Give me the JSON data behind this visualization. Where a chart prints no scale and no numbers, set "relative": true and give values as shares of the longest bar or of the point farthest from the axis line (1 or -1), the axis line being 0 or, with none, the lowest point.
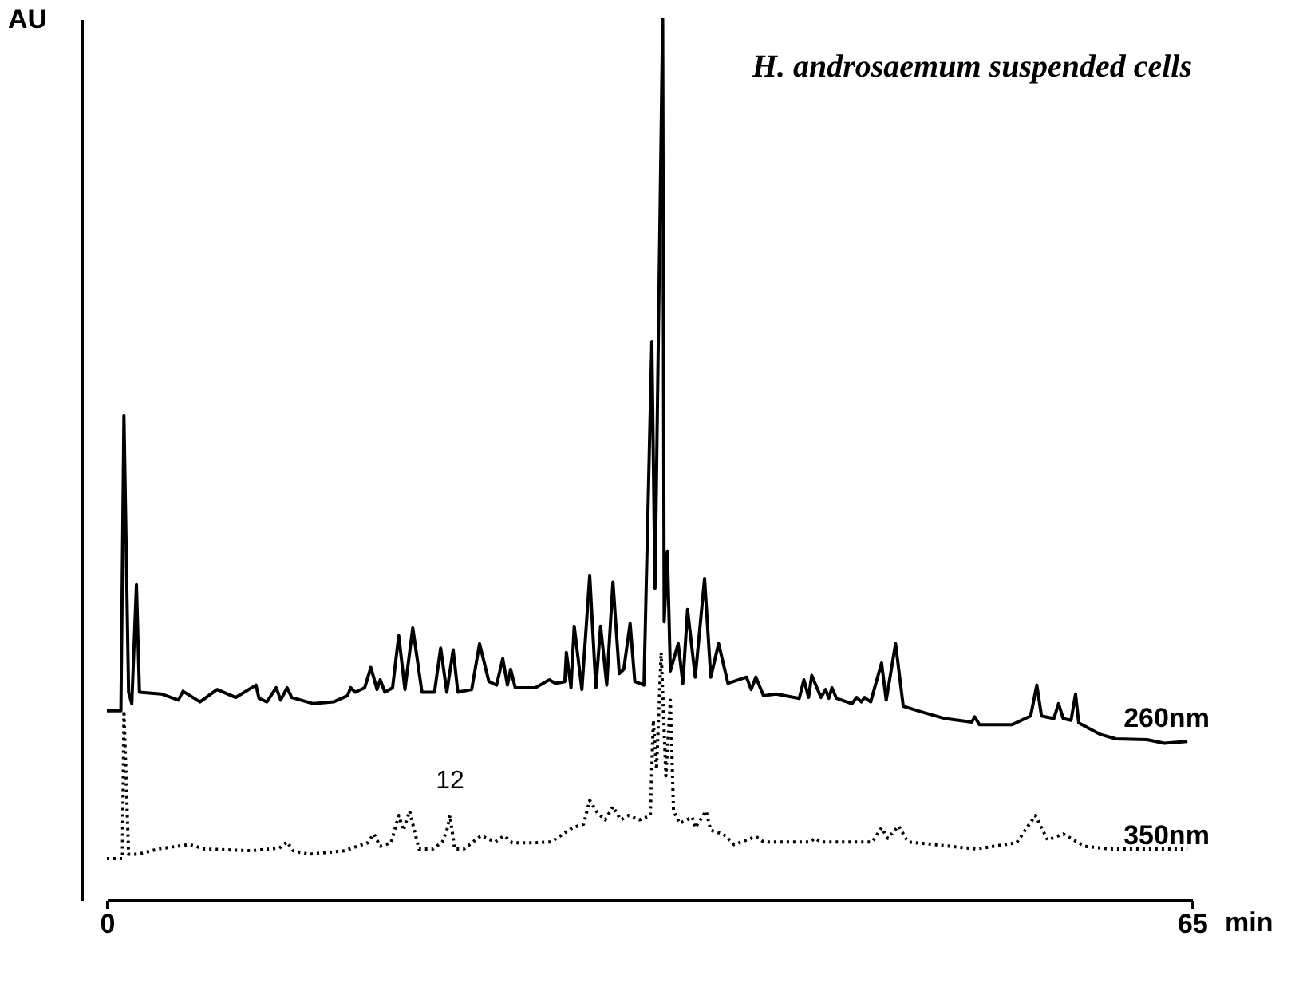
{
  "chart_data": {
    "type": "line",
    "title": "H. androsaemum suspended cells",
    "xlabel": "min",
    "ylabel": "AU",
    "relative": true,
    "xlim": [
      0,
      65
    ],
    "xticks": [
      0,
      65
    ],
    "tick_labels": "x",
    "grid": false,
    "legend": false,
    "marker": "none",
    "series": [
      {
        "name": "260nm",
        "color": "#000000",
        "line_style": "solid",
        "x": [
          0,
          0.84,
          1.02,
          1.3,
          1.49,
          1.77,
          1.95,
          3.25,
          4.28,
          4.56,
          5.58,
          6.6,
          7.72,
          8.93,
          9.11,
          9.58,
          10.14,
          10.41,
          10.79,
          11.07,
          12.37,
          13.58,
          14.41,
          14.6,
          14.88,
          15.44,
          15.81,
          16.18,
          16.37,
          16.65,
          17.11,
          17.48,
          17.85,
          18.32,
          18.87,
          19.62,
          19.99,
          20.36,
          20.74,
          21.02,
          21.85,
          22.32,
          22.88,
          23.34,
          23.71,
          23.99,
          24.18,
          24.46,
          25.66,
          26.5,
          26.87,
          27.43,
          27.52,
          27.8,
          27.99,
          28.45,
          28.92,
          29.29,
          29.57,
          29.94,
          30.31,
          30.69,
          30.96,
          31.34,
          31.62,
          32.17,
          32.64,
          32.83,
          33.29,
          33.38,
          33.57,
          33.75,
          34.22,
          34.5,
          34.78,
          35.24,
          35.8,
          36.17,
          36.64,
          37.2,
          38.31,
          38.59,
          38.87,
          39.33,
          40.08,
          41.47,
          41.75,
          42.03,
          42.22,
          42.77,
          43.05,
          43.24,
          43.43,
          43.7,
          44.63,
          44.91,
          45.19,
          45.38,
          45.75,
          46.4,
          46.68,
          47.24,
          47.7,
          48.91,
          50.21,
          51.8,
          51.98,
          52.26,
          54.21,
          55.33,
          55.7,
          55.98,
          56.72,
          57.0,
          57.28,
          57.75,
          58.02,
          58.21,
          59.51,
          60.44,
          62.3,
          63.33,
          64.72
        ],
        "values": [
          0.215,
          0.215,
          0.55,
          0.236,
          0.223,
          0.358,
          0.236,
          0.234,
          0.227,
          0.237,
          0.225,
          0.239,
          0.23,
          0.244,
          0.229,
          0.225,
          0.241,
          0.227,
          0.241,
          0.23,
          0.223,
          0.225,
          0.232,
          0.241,
          0.236,
          0.241,
          0.264,
          0.239,
          0.25,
          0.236,
          0.241,
          0.3,
          0.239,
          0.309,
          0.236,
          0.236,
          0.286,
          0.236,
          0.284,
          0.236,
          0.239,
          0.291,
          0.248,
          0.244,
          0.274,
          0.244,
          0.262,
          0.241,
          0.241,
          0.25,
          0.246,
          0.248,
          0.281,
          0.241,
          0.311,
          0.239,
          0.368,
          0.241,
          0.311,
          0.244,
          0.361,
          0.257,
          0.262,
          0.314,
          0.248,
          0.244,
          0.634,
          0.354,
          1.0,
          0.316,
          0.396,
          0.26,
          0.291,
          0.246,
          0.33,
          0.253,
          0.365,
          0.253,
          0.291,
          0.246,
          0.253,
          0.239,
          0.253,
          0.232,
          0.234,
          0.229,
          0.25,
          0.23,
          0.255,
          0.23,
          0.239,
          0.229,
          0.241,
          0.229,
          0.223,
          0.23,
          0.225,
          0.23,
          0.225,
          0.269,
          0.227,
          0.291,
          0.22,
          0.213,
          0.206,
          0.202,
          0.208,
          0.199,
          0.199,
          0.209,
          0.244,
          0.209,
          0.206,
          0.223,
          0.206,
          0.204,
          0.234,
          0.201,
          0.188,
          0.183,
          0.182,
          0.178,
          0.18
        ]
      },
      {
        "name": "350nm",
        "color": "#000000",
        "line_style": "dotted",
        "x": [
          0,
          0.93,
          1.02,
          1.3,
          1.86,
          3.07,
          4.93,
          5.86,
          8.65,
          10.32,
          10.79,
          11.16,
          12.09,
          14.23,
          15.62,
          15.99,
          16.37,
          17.02,
          17.48,
          17.76,
          18.13,
          18.69,
          19.53,
          20.09,
          20.36,
          20.55,
          20.83,
          21.39,
          22.41,
          23.25,
          23.81,
          24.27,
          25.66,
          26.6,
          27.9,
          28.55,
          28.92,
          29.38,
          29.85,
          30.31,
          30.78,
          31.24,
          31.9,
          32.55,
          32.73,
          32.92,
          33.2,
          33.48,
          33.75,
          33.94,
          34.31,
          35.06,
          35.24,
          35.89,
          36.17,
          36.92,
          37.57,
          38.87,
          39.33,
          42.12,
          42.4,
          42.77,
          45.84,
          46.4,
          46.77,
          47.42,
          47.98,
          52.07,
          54.49,
          55.61,
          56.35,
          57.28,
          58.58,
          60.07,
          64.72
        ],
        "values": [
          0.047,
          0.047,
          0.215,
          0.052,
          0.052,
          0.058,
          0.063,
          0.058,
          0.056,
          0.059,
          0.066,
          0.056,
          0.052,
          0.056,
          0.065,
          0.075,
          0.061,
          0.065,
          0.096,
          0.079,
          0.101,
          0.058,
          0.058,
          0.066,
          0.079,
          0.096,
          0.058,
          0.058,
          0.073,
          0.066,
          0.073,
          0.065,
          0.065,
          0.066,
          0.082,
          0.086,
          0.113,
          0.099,
          0.091,
          0.106,
          0.091,
          0.096,
          0.091,
          0.096,
          0.204,
          0.148,
          0.281,
          0.141,
          0.227,
          0.101,
          0.087,
          0.094,
          0.082,
          0.101,
          0.079,
          0.075,
          0.063,
          0.072,
          0.066,
          0.066,
          0.07,
          0.066,
          0.066,
          0.082,
          0.07,
          0.084,
          0.066,
          0.058,
          0.065,
          0.096,
          0.068,
          0.075,
          0.061,
          0.058,
          0.058
        ]
      }
    ],
    "annotations": [
      {
        "text": "12",
        "x": 20.55,
        "y": 0.096
      }
    ]
  }
}
